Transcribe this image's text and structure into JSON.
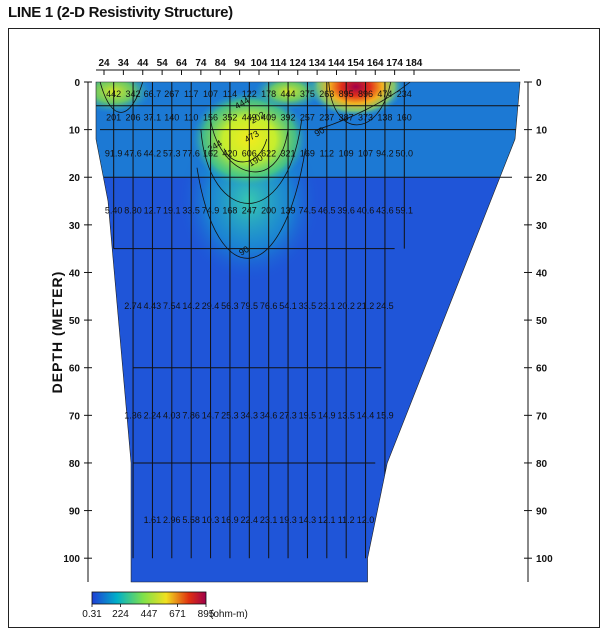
{
  "title": "LINE 1 (2-D Resistivity Structure)",
  "chart_data": {
    "type": "heatmap",
    "title": "LINE 1 (2-D Resistivity Structure)",
    "ylabel": "DEPTH (METER)",
    "xlabel": "",
    "x_ticks": [
      "24",
      "34",
      "44",
      "54",
      "64",
      "74",
      "84",
      "94",
      "104",
      "114",
      "124",
      "134",
      "144",
      "154",
      "164",
      "174",
      "184"
    ],
    "y_ticks": [
      "0",
      "10",
      "20",
      "30",
      "40",
      "50",
      "60",
      "70",
      "80",
      "90",
      "100"
    ],
    "xlim": [
      24,
      184
    ],
    "ylim": [
      0,
      105
    ],
    "colorbar": {
      "ticks": [
        "0.31",
        "224",
        "447",
        "671",
        "895"
      ],
      "unit": "(ohm-m)",
      "colors": [
        "#1f3fd6",
        "#00b0c8",
        "#7fe14a",
        "#f0e020",
        "#e03010",
        "#a0004a"
      ]
    },
    "layers": [
      {
        "depth": 2.5,
        "x": [
          24,
          34,
          44,
          54,
          64,
          74,
          84,
          94,
          104,
          114,
          124,
          134,
          144,
          154,
          164,
          174
        ],
        "values": [
          "442",
          "342",
          "66.7",
          "267",
          "117",
          "107",
          "114",
          "122",
          "178",
          "444",
          "375",
          "263",
          "895",
          "896",
          "474",
          "234"
        ]
      },
      {
        "depth": 7.5,
        "x": [
          24,
          34,
          44,
          54,
          64,
          74,
          84,
          94,
          104,
          114,
          124,
          134,
          144,
          154,
          164,
          174
        ],
        "values": [
          "201",
          "206",
          "37.1",
          "140",
          "110",
          "156",
          "352",
          "449",
          "409",
          "392",
          "257",
          "237",
          "387",
          "373",
          "138",
          "160"
        ]
      },
      {
        "depth": 15,
        "x": [
          24,
          34,
          44,
          54,
          64,
          74,
          84,
          94,
          104,
          114,
          124,
          134,
          144,
          154,
          164,
          174
        ],
        "values": [
          "91.9",
          "47.6",
          "44.2",
          "57.3",
          "77.6",
          "162",
          "420",
          "606",
          "622",
          "321",
          "169",
          "112",
          "109",
          "107",
          "94.2",
          "50.0"
        ]
      },
      {
        "depth": 27,
        "x": [
          24,
          34,
          44,
          54,
          64,
          74,
          84,
          94,
          104,
          114,
          124,
          134,
          144,
          154,
          164,
          174
        ],
        "values": [
          "5.40",
          "8.30",
          "12.7",
          "19.1",
          "33.5",
          "74.9",
          "168",
          "247",
          "200",
          "139",
          "74.5",
          "46.5",
          "39.6",
          "40.6",
          "43.6",
          "59.1"
        ]
      },
      {
        "depth": 47,
        "x": [
          34,
          44,
          54,
          64,
          74,
          84,
          94,
          104,
          114,
          124,
          134,
          144,
          154,
          164
        ],
        "values": [
          "2.74",
          "4.43",
          "7.54",
          "14.2",
          "29.4",
          "56.3",
          "79.5",
          "76.6",
          "54.1",
          "33.5",
          "23.1",
          "20.2",
          "21.2",
          "24.5"
        ]
      },
      {
        "depth": 70,
        "x": [
          34,
          44,
          54,
          64,
          74,
          84,
          94,
          104,
          114,
          124,
          134,
          144,
          154,
          164
        ],
        "values": [
          "1.36",
          "2.24",
          "4.03",
          "7.86",
          "14.7",
          "25.3",
          "34.3",
          "34.6",
          "27.3",
          "19.5",
          "14.9",
          "13.5",
          "14.4",
          "15.9"
        ]
      },
      {
        "depth": 92,
        "x": [
          44,
          54,
          64,
          74,
          84,
          94,
          104,
          114,
          124,
          134,
          144,
          154
        ],
        "values": [
          "1.61",
          "2.96",
          "5.58",
          "10.3",
          "16.9",
          "22.4",
          "23.1",
          "19.3",
          "14.3",
          "12.1",
          "11.2",
          "12.0"
        ]
      }
    ],
    "contour_labels": [
      "202",
      "444",
      "473",
      "90",
      "244",
      "90",
      "190"
    ],
    "grid": true
  }
}
